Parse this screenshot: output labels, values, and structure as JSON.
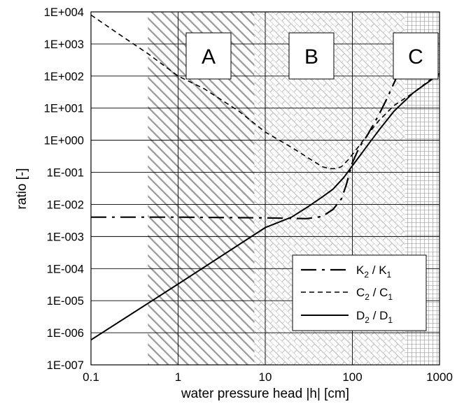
{
  "chart_data": {
    "type": "line",
    "xlabel": "water pressure head |h| [cm]",
    "ylabel": "ratio [-]",
    "x_scale": "log",
    "y_scale": "log",
    "xlim": [
      0.1,
      1000
    ],
    "ylim": [
      1e-07,
      10000
    ],
    "x_ticks": [
      "0.1",
      "1",
      "10",
      "100",
      "1000"
    ],
    "y_ticks": [
      "1E-007",
      "1E-006",
      "1E-005",
      "1E-004",
      "1E-003",
      "1E-002",
      "1E-001",
      "1E+000",
      "1E+001",
      "1E+002",
      "1E+003",
      "1E+004"
    ],
    "grid": true,
    "legend_position": "bottom-right",
    "regions": [
      {
        "label": "A",
        "x_from": 0.45,
        "x_to": 7.5,
        "pattern": "diagonal-hatch"
      },
      {
        "label": "B",
        "x_from": 7.5,
        "x_to": 400,
        "pattern": "brick"
      },
      {
        "label": "C",
        "x_from": 400,
        "x_to": 1000,
        "pattern": "crosshatch"
      }
    ],
    "series": [
      {
        "name": "K2 / K1",
        "legend_main": "K",
        "legend_sub1": "2",
        "legend_mid": " / K",
        "legend_sub2": "1",
        "style": "long-dash-dot",
        "points": [
          [
            0.1,
            0.004
          ],
          [
            1,
            0.004
          ],
          [
            10,
            0.0038
          ],
          [
            30,
            0.0036
          ],
          [
            45,
            0.0042
          ],
          [
            60,
            0.007
          ],
          [
            75,
            0.015
          ],
          [
            85,
            0.04
          ],
          [
            100,
            0.2
          ],
          [
            120,
            0.6
          ],
          [
            150,
            1.5
          ],
          [
            200,
            6
          ],
          [
            250,
            20
          ],
          [
            300,
            60
          ],
          [
            350,
            150
          ]
        ]
      },
      {
        "name": "C2 / C1",
        "legend_main": "C",
        "legend_sub1": "2",
        "legend_mid": " / C",
        "legend_sub2": "1",
        "style": "short-dash",
        "points": [
          [
            0.1,
            8000
          ],
          [
            0.2,
            2200
          ],
          [
            0.45,
            500
          ],
          [
            1,
            100
          ],
          [
            2,
            40
          ],
          [
            5,
            8
          ],
          [
            10,
            1.8
          ],
          [
            20,
            0.6
          ],
          [
            30,
            0.3
          ],
          [
            45,
            0.15
          ],
          [
            55,
            0.13
          ],
          [
            65,
            0.13
          ],
          [
            75,
            0.15
          ],
          [
            90,
            0.25
          ],
          [
            110,
            0.5
          ],
          [
            150,
            1.5
          ],
          [
            200,
            4
          ],
          [
            300,
            12
          ],
          [
            500,
            30
          ],
          [
            800,
            80
          ],
          [
            1000,
            120
          ]
        ]
      },
      {
        "name": "D2 / D1",
        "legend_main": "D",
        "legend_sub1": "2",
        "legend_mid": " / D",
        "legend_sub2": "1",
        "style": "solid",
        "points": [
          [
            0.1,
            6e-07
          ],
          [
            1,
            3.3e-05
          ],
          [
            10,
            0.0019
          ],
          [
            20,
            0.004
          ],
          [
            30,
            0.008
          ],
          [
            45,
            0.017
          ],
          [
            60,
            0.03
          ],
          [
            80,
            0.07
          ],
          [
            100,
            0.16
          ],
          [
            150,
            0.7
          ],
          [
            200,
            2
          ],
          [
            300,
            8
          ],
          [
            500,
            30
          ],
          [
            800,
            75
          ],
          [
            1000,
            120
          ]
        ]
      }
    ]
  }
}
